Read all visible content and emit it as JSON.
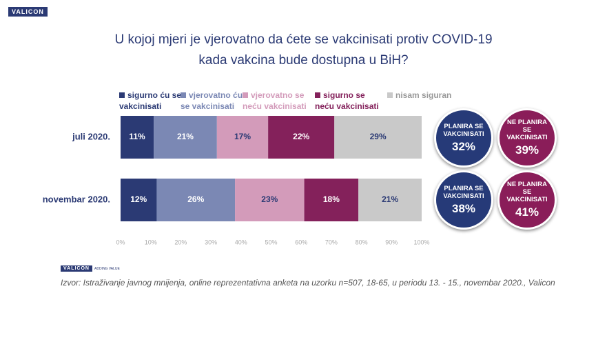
{
  "header": {
    "logo": "VALICON"
  },
  "chart_data": {
    "type": "stacked-bar-horizontal",
    "title": [
      "U kojoj mjeri je vjerovatno da ćete se vakcinisati protiv COVID-19",
      "kada vakcina bude dostupna u BiH?"
    ],
    "categories": [
      "juli 2020.",
      "novembar 2020."
    ],
    "series": [
      {
        "name": "sigurno ću se vakcinisati",
        "color": "#2b3a74",
        "values": [
          11,
          12
        ],
        "value_labels": [
          "11%",
          "12%"
        ]
      },
      {
        "name": "vjerovatno ću se vakcinisati",
        "color": "#7b88b4",
        "values": [
          21,
          26
        ],
        "value_labels": [
          "21%",
          "26%"
        ]
      },
      {
        "name": "vjerovatno se neću vakcinisati",
        "color": "#d39bba",
        "values": [
          17,
          23
        ],
        "value_labels": [
          "17%",
          "23%"
        ]
      },
      {
        "name": "sigurno se neću vakcinisati",
        "color": "#84215b",
        "values": [
          22,
          18
        ],
        "value_labels": [
          "22%",
          "18%"
        ]
      },
      {
        "name": "nisam siguran",
        "color": "#c9c9c9",
        "values": [
          29,
          21
        ],
        "value_labels": [
          "29%",
          "21%"
        ]
      }
    ],
    "xlim": [
      0,
      100
    ],
    "xticks": [
      {
        "value": 0,
        "label": "0%"
      },
      {
        "value": 10,
        "label": "10%"
      },
      {
        "value": 20,
        "label": "20%"
      },
      {
        "value": 30,
        "label": "30%"
      },
      {
        "value": 40,
        "label": "40%"
      },
      {
        "value": 50,
        "label": "50%"
      },
      {
        "value": 60,
        "label": "60%"
      },
      {
        "value": 70,
        "label": "70%"
      },
      {
        "value": 80,
        "label": "80%"
      },
      {
        "value": 90,
        "label": "90%"
      },
      {
        "value": 100,
        "label": "100%"
      }
    ],
    "grid": false,
    "totals": [
      [
        {
          "label": "PLANIRA SE VAKCINISATI",
          "value": 32,
          "value_label": "32%",
          "color": "#263a78"
        },
        {
          "label": "NE PLANIRA SE VAKCINISATI",
          "value": 39,
          "value_label": "39%",
          "color": "#8a1d59"
        }
      ],
      [
        {
          "label": "PLANIRA SE VAKCINISATI",
          "value": 38,
          "value_label": "38%",
          "color": "#263a78"
        },
        {
          "label": "NE PLANIRA SE VAKCINISATI",
          "value": 41,
          "value_label": "41%",
          "color": "#8a1d59"
        }
      ]
    ]
  },
  "footer": {
    "logo": "VALICON",
    "tagline": "ADDING VALUE",
    "source": "Izvor: Istraživanje javnog mnijenja, online reprezentativna anketa na uzorku n=507, 18-65, u periodu 13. - 15., novembar 2020., Valicon"
  }
}
